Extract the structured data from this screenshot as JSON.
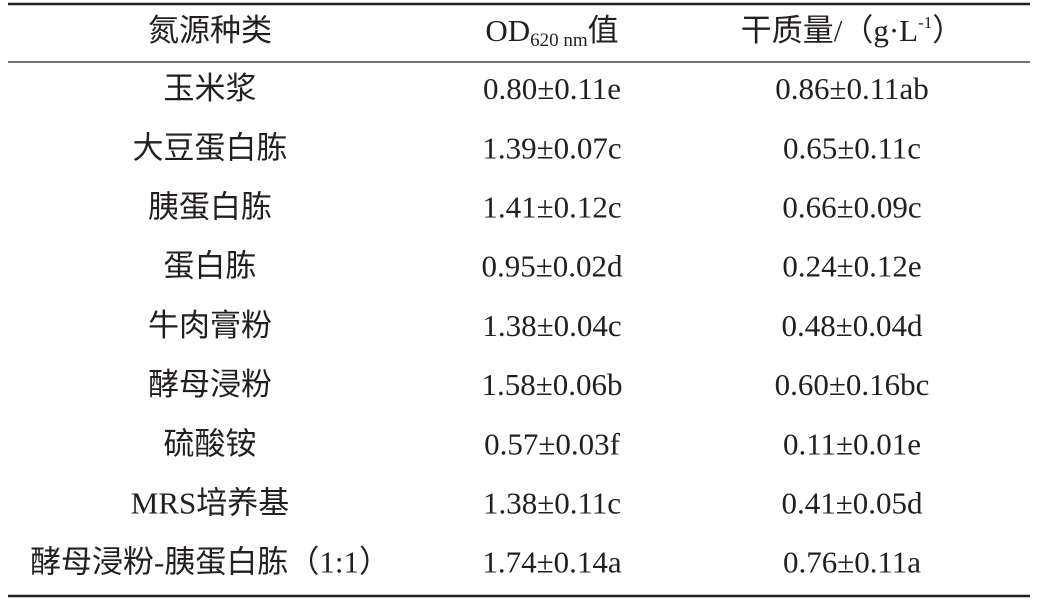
{
  "table": {
    "header": [
      [
        {
          "text": "氮源种类"
        }
      ],
      [
        {
          "text": "OD"
        },
        {
          "text": "620 nm",
          "sub": true
        },
        {
          "text": "值"
        }
      ],
      [
        {
          "text": "干质量/（g·L"
        },
        {
          "text": "-1",
          "sup": true
        },
        {
          "text": "）"
        }
      ]
    ],
    "rows": [
      [
        "玉米浆",
        "0.80±0.11e",
        "0.86±0.11ab"
      ],
      [
        "大豆蛋白胨",
        "1.39±0.07c",
        "0.65±0.11c"
      ],
      [
        "胰蛋白胨",
        "1.41±0.12c",
        "0.66±0.09c"
      ],
      [
        "蛋白胨",
        "0.95±0.02d",
        "0.24±0.12e"
      ],
      [
        "牛肉膏粉",
        "1.38±0.04c",
        "0.48±0.04d"
      ],
      [
        "酵母浸粉",
        "1.58±0.06b",
        "0.60±0.16bc"
      ],
      [
        "硫酸铵",
        "0.57±0.03f",
        "0.11±0.01e"
      ],
      [
        "MRS培养基",
        "1.38±0.11c",
        "0.41±0.05d"
      ],
      [
        "酵母浸粉-胰蛋白胨（1:1）",
        "1.74±0.14a",
        "0.76±0.11a"
      ]
    ]
  }
}
